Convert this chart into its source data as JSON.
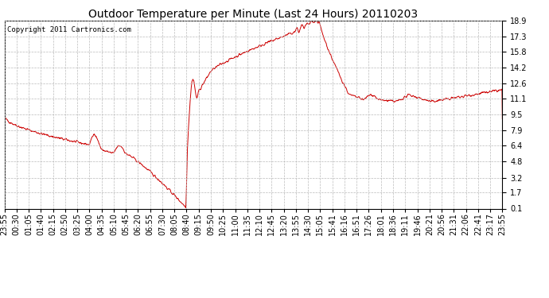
{
  "title": "Outdoor Temperature per Minute (Last 24 Hours) 20110203",
  "copyright_text": "Copyright 2011 Cartronics.com",
  "line_color": "#cc0000",
  "bg_color": "#ffffff",
  "grid_color": "#bbbbbb",
  "yticks": [
    0.1,
    1.7,
    3.2,
    4.8,
    6.4,
    7.9,
    9.5,
    11.1,
    12.6,
    14.2,
    15.8,
    17.3,
    18.9
  ],
  "xtick_labels": [
    "23:55",
    "00:30",
    "01:05",
    "01:40",
    "02:15",
    "02:50",
    "03:25",
    "04:00",
    "04:35",
    "05:10",
    "05:45",
    "06:20",
    "06:55",
    "07:30",
    "08:05",
    "08:40",
    "09:15",
    "09:50",
    "10:25",
    "11:00",
    "11:35",
    "12:10",
    "12:45",
    "13:20",
    "13:55",
    "14:30",
    "15:05",
    "15:41",
    "16:16",
    "16:51",
    "17:26",
    "18:01",
    "18:36",
    "19:11",
    "19:46",
    "20:21",
    "20:56",
    "21:31",
    "22:06",
    "22:41",
    "23:17",
    "23:55"
  ],
  "ymin": 0.1,
  "ymax": 18.9,
  "title_fontsize": 10,
  "axis_fontsize": 7,
  "copyright_fontsize": 6.5
}
